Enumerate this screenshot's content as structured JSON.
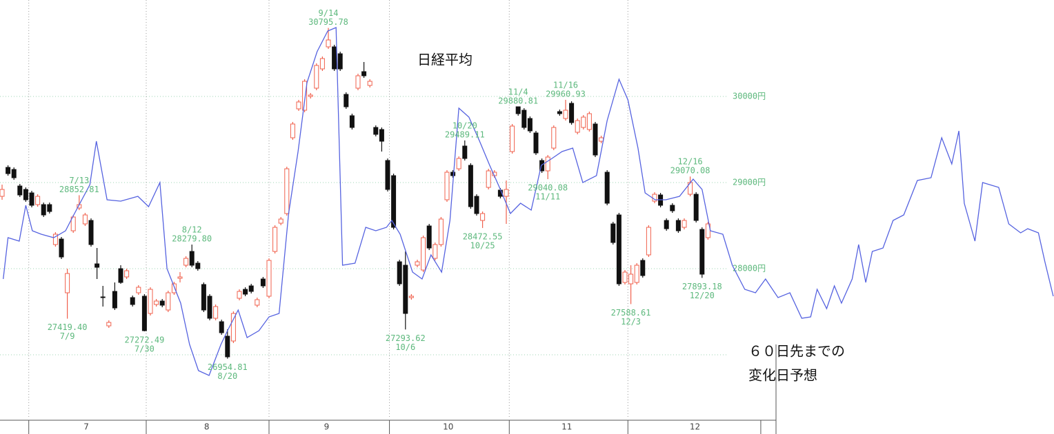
{
  "chart_data": {
    "type": "candlestick",
    "title": "日経平均",
    "note": [
      "６０日先までの",
      "変化日予想"
    ],
    "xlim": [
      -0.35,
      177.33
    ],
    "ylim": [
      26256,
      31120
    ],
    "yticks": [
      {
        "value": 30000,
        "label": "30000円"
      },
      {
        "value": 29000,
        "label": "29000円"
      },
      {
        "value": 28000,
        "label": "28000円"
      },
      {
        "value": 27000,
        "label": null
      }
    ],
    "xticks": [
      {
        "value": 14.2,
        "label": "7"
      },
      {
        "value": 34.5,
        "label": "8"
      },
      {
        "value": 54.7,
        "label": "9"
      },
      {
        "value": 75.2,
        "label": "10"
      },
      {
        "value": 95.2,
        "label": "11"
      },
      {
        "value": 116.8,
        "label": "12"
      }
    ],
    "xgrid": [
      4.5,
      24.3,
      45.0,
      65.3,
      85.5,
      105.5,
      127.9
    ],
    "grid": true,
    "up_color": "#f0604c",
    "down_color": "#111111",
    "line_color": "#5562e0",
    "label_color": "#5cb87c",
    "candles": {
      "open": [
        28840,
        29176,
        29152,
        28960,
        28920,
        28880,
        28744,
        28744,
        28744,
        28280,
        28344,
        27720,
        28440,
        28704,
        28520,
        28560,
        28056,
        27672,
        27336,
        27736,
        28000,
        27904,
        27664,
        27720,
        27680,
        27480,
        27584,
        27624,
        27520,
        27720,
        27888,
        28040,
        28200,
        28064,
        27816,
        27680,
        27424,
        27384,
        27216,
        27160,
        27656,
        27760,
        27800,
        27576,
        27880,
        27680,
        28200,
        28528,
        28640,
        29520,
        29856,
        29840,
        30000,
        30096,
        30320,
        30576,
        30576,
        30496,
        30024,
        29776,
        30096,
        30288,
        30128,
        29640,
        29616,
        29256,
        29080,
        28080,
        28040,
        27664,
        28040,
        27984,
        28496,
        28120,
        28280,
        28800,
        29120,
        29160,
        29424,
        29200,
        28840,
        28560,
        28944,
        29080,
        28912,
        28840,
        29360,
        29880,
        29840,
        29744,
        29576,
        29256,
        29136,
        29400,
        29824,
        29744,
        29920,
        29584,
        29640,
        29616,
        29680,
        29480,
        29120,
        28520,
        28624,
        27840,
        27824,
        27840,
        28096,
        28160,
        28784,
        28856,
        28560,
        28736,
        28560,
        28480,
        28864,
        28864,
        28456,
        28360
      ],
      "high": [
        28976,
        29200,
        29176,
        28984,
        28944,
        28904,
        28864,
        28768,
        28768,
        28424,
        28368,
        28000,
        28624,
        28852.81,
        28648,
        28584,
        28240,
        27800,
        27400,
        27840,
        28040,
        28000,
        27688,
        27808,
        27704,
        27784,
        27648,
        27648,
        27744,
        27848,
        27960,
        28144,
        28279.8,
        28088,
        27840,
        27704,
        27584,
        27408,
        27296,
        27504,
        27760,
        27784,
        27824,
        27664,
        27904,
        28120,
        28504,
        28600,
        29184,
        29704,
        29960,
        30200,
        30040,
        30384,
        30464,
        30795.78,
        30600,
        30520,
        30048,
        29800,
        30264,
        30400,
        30200,
        29664,
        29640,
        29280,
        29104,
        28104,
        28200,
        27704,
        28104,
        28384,
        28520,
        28304,
        28600,
        29144,
        29144,
        29304,
        29489.11,
        29224,
        28864,
        28664,
        29160,
        29144,
        28936,
        29024,
        29680,
        29880.81,
        29864,
        29768,
        29600,
        29280,
        29320,
        29664,
        29848,
        29960.93,
        29944,
        29744,
        29784,
        29824,
        29704,
        29544,
        29144,
        28544,
        28648,
        27984,
        28040,
        28064,
        28120,
        28504,
        28888,
        28880,
        28584,
        28760,
        28584,
        28584,
        29070.08,
        28888,
        28480,
        28544
      ],
      "low": [
        28800,
        29080,
        29032,
        28832,
        28776,
        28712,
        28720,
        28600,
        28640,
        28256,
        28112,
        27419.4,
        28416,
        28680,
        28496,
        28256,
        27880,
        27560,
        27312,
        27520,
        27824,
        27880,
        27560,
        27696,
        27272.49,
        27456,
        27560,
        27552,
        27496,
        27696,
        27840,
        28016,
        28016,
        27976,
        27496,
        27400,
        27400,
        27232,
        26954.81,
        27136,
        27632,
        27680,
        27712,
        27552,
        27776,
        27656,
        28176,
        28504,
        28616,
        29496,
        29832,
        29816,
        29976,
        30072,
        30296,
        30552,
        30296,
        30296,
        29856,
        29616,
        30072,
        30216,
        30104,
        29536,
        29360,
        28896,
        28456,
        27800,
        27293.62,
        27640,
        28016,
        27960,
        28216,
        28096,
        28256,
        28776,
        29056,
        29136,
        29256,
        28696,
        28616,
        28472.55,
        28920,
        29056,
        28816,
        28520,
        29336,
        29776,
        29616,
        29576,
        29320,
        29112,
        29040.08,
        29376,
        29776,
        29720,
        29672,
        29560,
        29616,
        29592,
        29296,
        29456,
        28736,
        28280,
        27800,
        27816,
        27588.61,
        27816,
        27896,
        28136,
        28760,
        28712,
        28440,
        28648,
        28416,
        28456,
        28840,
        28536,
        27893.18,
        28336
      ],
      "close": [
        28920,
        29104,
        29056,
        28856,
        28800,
        28736,
        28840,
        28624,
        28664,
        28400,
        28136,
        27944,
        28600,
        28744,
        28624,
        28280,
        28016,
        27664,
        27376,
        27544,
        27840,
        27976,
        27584,
        27784,
        27280,
        27760,
        27624,
        27576,
        27720,
        27824,
        27904,
        28120,
        28040,
        28000,
        27520,
        27424,
        27560,
        27256,
        26976,
        27480,
        27736,
        27704,
        27736,
        27640,
        27800,
        28096,
        28480,
        28576,
        29160,
        29680,
        29936,
        30176,
        30016,
        30360,
        30440,
        30656,
        30320,
        30320,
        29880,
        29640,
        30240,
        30240,
        30176,
        29560,
        29480,
        28920,
        28480,
        27824,
        27480,
        27680,
        28080,
        28360,
        28240,
        28280,
        28576,
        29120,
        29080,
        29280,
        29280,
        28720,
        28640,
        28640,
        29136,
        29120,
        28840,
        28920,
        29656,
        29800,
        29640,
        29600,
        29344,
        29136,
        29296,
        29640,
        29800,
        29840,
        29696,
        29720,
        29760,
        29800,
        29320,
        29520,
        28760,
        28304,
        27824,
        27960,
        27936,
        28040,
        27920,
        28480,
        28864,
        28736,
        28464,
        28672,
        28440,
        28560,
        29000,
        28560,
        27936,
        28520
      ]
    },
    "line": {
      "x": [
        0.2,
        1.0,
        2.9,
        4.0,
        5.1,
        6.6,
        8.7,
        10.7,
        11.9,
        14.8,
        15.9,
        17.7,
        20.0,
        22.9,
        24.7,
        26.6,
        27.8,
        30.1,
        31.6,
        33.1,
        34.9,
        36.9,
        38.0,
        39.8,
        41.3,
        43.3,
        45.0,
        46.7,
        48.3,
        49.9,
        51.4,
        53.1,
        54.9,
        56.3,
        57.4,
        59.5,
        61.3,
        63.0,
        64.8,
        65.7,
        67.1,
        69.2,
        70.8,
        72.3,
        74.1,
        75.5,
        77.0,
        78.7,
        80.5,
        82.2,
        84.0,
        85.7,
        87.4,
        89.2,
        90.9,
        92.7,
        94.4,
        96.2,
        97.9,
        100.2,
        102.0,
        104.0,
        105.5,
        107.2,
        108.4,
        110.1,
        111.9,
        114.2,
        116.5,
        118.0,
        119.4,
        121.5,
        123.1,
        125.2,
        127.0,
        128.7,
        130.8,
        132.8,
        134.8,
        136.3,
        137.4,
        139.0,
        140.3,
        141.5,
        143.3,
        144.4,
        145.6,
        146.7,
        148.5,
        150.2,
        152.0,
        154.3,
        156.6,
        158.4,
        160.1,
        161.3,
        162.2,
        164.0,
        165.3,
        168.0,
        169.7,
        171.7,
        172.9,
        174.7,
        175.8,
        177.2
      ],
      "values": [
        27880,
        28360,
        28320,
        28736,
        28440,
        28400,
        28360,
        28440,
        28600,
        28976,
        29480,
        28800,
        28784,
        28840,
        28720,
        29000,
        28000,
        27600,
        27120,
        26816,
        26760,
        27120,
        27280,
        27520,
        27200,
        27280,
        27440,
        27480,
        28640,
        29360,
        30160,
        30520,
        30760,
        30800,
        28040,
        28064,
        28480,
        28440,
        28480,
        28560,
        28400,
        27960,
        27880,
        28160,
        27960,
        28560,
        29864,
        29760,
        29480,
        29200,
        28920,
        28640,
        28760,
        28680,
        29200,
        29280,
        29360,
        29400,
        29000,
        29080,
        29720,
        30200,
        29960,
        29400,
        28880,
        28800,
        28800,
        28840,
        29040,
        28920,
        28440,
        28400,
        28040,
        27760,
        27720,
        27880,
        27664,
        27720,
        27424,
        27440,
        27760,
        27536,
        27800,
        27600,
        27880,
        28280,
        27840,
        28200,
        28240,
        28560,
        28624,
        29024,
        29056,
        29520,
        29216,
        29600,
        28760,
        28320,
        29000,
        28944,
        28520,
        28416,
        28464,
        28416,
        28080,
        27680
      ]
    },
    "annotations": [
      {
        "x": 11,
        "value": 27419.4,
        "label": "27419.40",
        "date": "7/9",
        "side": "below"
      },
      {
        "x": 13,
        "value": 28852.81,
        "label": "28852.81",
        "date": "7/13",
        "side": "above"
      },
      {
        "x": 24,
        "value": 27272.49,
        "label": "27272.49",
        "date": "7/30",
        "side": "below"
      },
      {
        "x": 32,
        "value": 28279.8,
        "label": "28279.80",
        "date": "8/12",
        "side": "above"
      },
      {
        "x": 38,
        "value": 26954.81,
        "label": "26954.81",
        "date": "8/20",
        "side": "below"
      },
      {
        "x": 55,
        "value": 30795.78,
        "label": "30795.78",
        "date": "9/14",
        "side": "above"
      },
      {
        "x": 68,
        "value": 27293.62,
        "label": "27293.62",
        "date": "10/6",
        "side": "below"
      },
      {
        "x": 78,
        "value": 29489.11,
        "label": "29489.11",
        "date": "10/20",
        "side": "above"
      },
      {
        "x": 81,
        "value": 28472.55,
        "label": "28472.55",
        "date": "10/25",
        "side": "below"
      },
      {
        "x": 87,
        "value": 29880.81,
        "label": "29880.81",
        "date": "11/4",
        "side": "above"
      },
      {
        "x": 92,
        "value": 29040.08,
        "label": "29040.08",
        "date": "11/11",
        "side": "below"
      },
      {
        "x": 95,
        "value": 29960.93,
        "label": "29960.93",
        "date": "11/16",
        "side": "above"
      },
      {
        "x": 106,
        "value": 27588.61,
        "label": "27588.61",
        "date": "12/3",
        "side": "below"
      },
      {
        "x": 116,
        "value": 29070.08,
        "label": "29070.08",
        "date": "12/16",
        "side": "above"
      },
      {
        "x": 118,
        "value": 27893.18,
        "label": "27893.18",
        "date": "12/20",
        "side": "below"
      }
    ]
  }
}
